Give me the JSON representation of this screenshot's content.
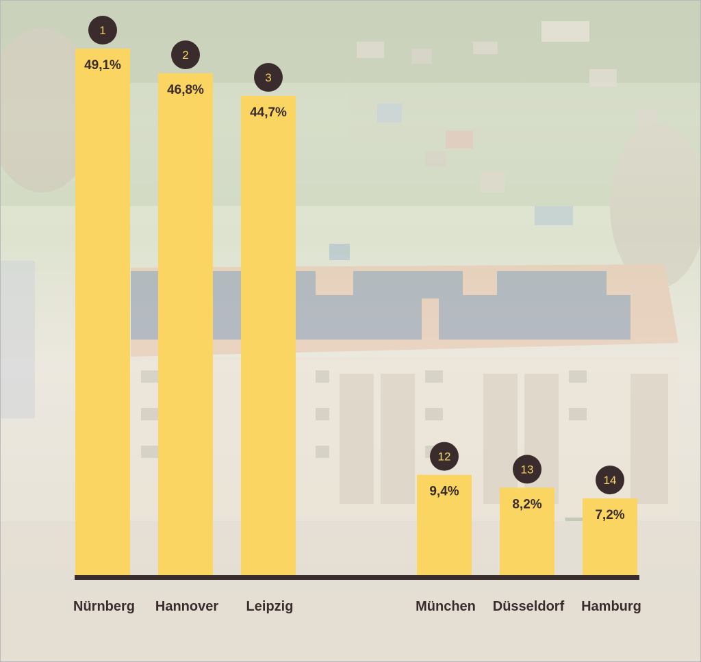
{
  "chart_data": {
    "type": "bar",
    "title": "",
    "xlabel": "",
    "ylabel": "",
    "ylim": [
      0,
      49.1
    ],
    "grid": false,
    "categories": [
      "Nürnberg",
      "Hannover",
      "Leipzig",
      "München",
      "Düsseldorf",
      "Hamburg"
    ],
    "values": [
      49.1,
      46.8,
      44.7,
      9.4,
      8.2,
      7.2
    ],
    "value_labels": [
      "49,1%",
      "46,8%",
      "44,7%",
      "9,4%",
      "8,2%",
      "7,2%"
    ],
    "ranks": [
      "1",
      "2",
      "3",
      "12",
      "13",
      "14"
    ],
    "bar_color": "#fad561",
    "axis_color": "#3a2c2c",
    "badge_color": "#3a2c2c",
    "badge_text_color": "#f3d266",
    "text_color": "#3a2c2c"
  },
  "background": {
    "description_icon": "aerial-photo-apartment-building-solar-roof"
  }
}
